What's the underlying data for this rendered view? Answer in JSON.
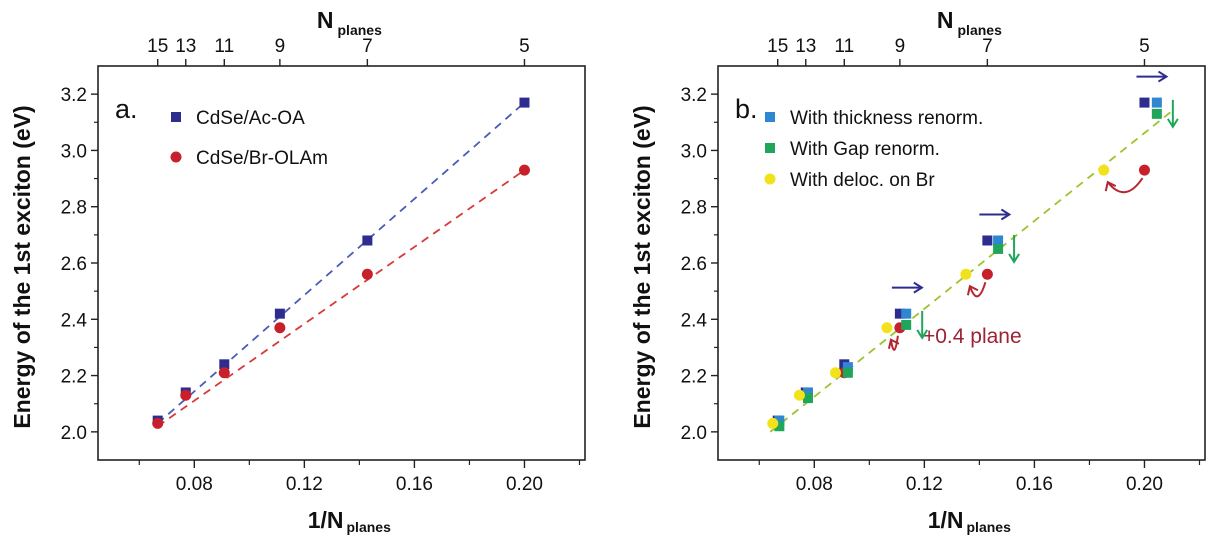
{
  "chart_data": [
    {
      "panel": "a.",
      "type": "scatter",
      "xlabel": "1/N",
      "xlabel_sub": "planes",
      "ylabel": "Energy of the 1st exciton (eV)",
      "toplabel": "N",
      "toplabel_sub": "planes",
      "xlim": [
        0.045,
        0.222
      ],
      "ylim": [
        1.9,
        3.3
      ],
      "x_ticks": [
        {
          "v": 0.08,
          "label": "0.08"
        },
        {
          "v": 0.12,
          "label": "0.12"
        },
        {
          "v": 0.16,
          "label": "0.16"
        },
        {
          "v": 0.2,
          "label": "0.20"
        }
      ],
      "y_ticks": [
        {
          "v": 2.0,
          "label": "2.0"
        },
        {
          "v": 2.2,
          "label": "2.2"
        },
        {
          "v": 2.4,
          "label": "2.4"
        },
        {
          "v": 2.6,
          "label": "2.6"
        },
        {
          "v": 2.8,
          "label": "2.8"
        },
        {
          "v": 3.0,
          "label": "3.0"
        },
        {
          "v": 3.2,
          "label": "3.2"
        }
      ],
      "top_ticks": [
        {
          "v": 0.0667,
          "label": "15"
        },
        {
          "v": 0.0769,
          "label": "13"
        },
        {
          "v": 0.0909,
          "label": "11"
        },
        {
          "v": 0.1111,
          "label": "9"
        },
        {
          "v": 0.1429,
          "label": "7"
        },
        {
          "v": 0.2,
          "label": "5"
        }
      ],
      "legend_position": "top-left",
      "series": [
        {
          "name": "CdSe/Ac-OA",
          "marker": "square",
          "color": "#2e2d8f",
          "x": [
            0.0667,
            0.0769,
            0.0909,
            0.1111,
            0.1429,
            0.2
          ],
          "y": [
            2.04,
            2.14,
            2.24,
            2.42,
            2.68,
            3.17
          ]
        },
        {
          "name": "CdSe/Br-OLAm",
          "marker": "circle",
          "color": "#c8202a",
          "x": [
            0.0667,
            0.0769,
            0.0909,
            0.1111,
            0.1429,
            0.2
          ],
          "y": [
            2.03,
            2.13,
            2.21,
            2.37,
            2.56,
            2.93
          ]
        }
      ],
      "fits": [
        {
          "color": "#4a5cb8",
          "x": [
            0.0667,
            0.2
          ],
          "y": [
            2.03,
            3.17
          ]
        },
        {
          "color": "#d63a3a",
          "x": [
            0.0667,
            0.2
          ],
          "y": [
            2.02,
            2.93
          ]
        }
      ]
    },
    {
      "panel": "b.",
      "type": "scatter",
      "xlabel": "1/N",
      "xlabel_sub": "planes",
      "ylabel": "Energy of the 1st exciton (eV)",
      "toplabel": "N",
      "toplabel_sub": "planes",
      "xlim": [
        0.045,
        0.222
      ],
      "ylim": [
        1.9,
        3.3
      ],
      "x_ticks": [
        {
          "v": 0.08,
          "label": "0.08"
        },
        {
          "v": 0.12,
          "label": "0.12"
        },
        {
          "v": 0.16,
          "label": "0.16"
        },
        {
          "v": 0.2,
          "label": "0.20"
        }
      ],
      "y_ticks": [
        {
          "v": 2.0,
          "label": "2.0"
        },
        {
          "v": 2.2,
          "label": "2.2"
        },
        {
          "v": 2.4,
          "label": "2.4"
        },
        {
          "v": 2.6,
          "label": "2.6"
        },
        {
          "v": 2.8,
          "label": "2.8"
        },
        {
          "v": 3.0,
          "label": "3.0"
        },
        {
          "v": 3.2,
          "label": "3.2"
        }
      ],
      "top_ticks": [
        {
          "v": 0.0667,
          "label": "15"
        },
        {
          "v": 0.0769,
          "label": "13"
        },
        {
          "v": 0.0909,
          "label": "11"
        },
        {
          "v": 0.1111,
          "label": "9"
        },
        {
          "v": 0.1429,
          "label": "7"
        },
        {
          "v": 0.2,
          "label": "5"
        }
      ],
      "legend_position": "top-left",
      "series": [
        {
          "marker": "square",
          "color": "#2e2d8f",
          "x": [
            0.0667,
            0.0769,
            0.0909,
            0.1111,
            0.1429,
            0.2
          ],
          "y": [
            2.04,
            2.14,
            2.24,
            2.42,
            2.68,
            3.17
          ]
        },
        {
          "marker": "circle",
          "color": "#c8202a",
          "x": [
            0.0667,
            0.0769,
            0.0909,
            0.1111,
            0.1429,
            0.2
          ],
          "y": [
            2.03,
            2.13,
            2.21,
            2.37,
            2.56,
            2.93
          ]
        },
        {
          "name": "With thickness renorm.",
          "marker": "square",
          "color": "#2f86d1",
          "x": [
            0.0673,
            0.0777,
            0.0922,
            0.1134,
            0.1468,
            0.2045
          ],
          "y": [
            2.04,
            2.14,
            2.23,
            2.42,
            2.68,
            3.17
          ]
        },
        {
          "name": "With Gap renorm.",
          "marker": "square",
          "color": "#1fa65a",
          "x": [
            0.0673,
            0.0777,
            0.0922,
            0.1134,
            0.1468,
            0.2045
          ],
          "y": [
            2.02,
            2.12,
            2.21,
            2.38,
            2.65,
            3.13
          ]
        },
        {
          "name": "With deloc. on Br",
          "marker": "circle",
          "color": "#f2e21c",
          "x": [
            0.0649,
            0.0746,
            0.0877,
            0.1064,
            0.1351,
            0.1852
          ],
          "y": [
            2.03,
            2.13,
            2.21,
            2.37,
            2.56,
            2.93
          ]
        }
      ],
      "fits": [
        {
          "color": "#9cc32a",
          "x": [
            0.064,
            0.21
          ],
          "y": [
            2.0,
            3.14
          ]
        }
      ],
      "annotations": [
        {
          "text": "+0.4 plane",
          "color": "#9b2335",
          "x": 0.1195,
          "y": 2.34
        }
      ],
      "markers_decor": {
        "arrows_right_color": "#2e2d8f",
        "arrows_down_color": "#1fa65a",
        "curved_arrows_color": "#b5262f"
      }
    }
  ]
}
